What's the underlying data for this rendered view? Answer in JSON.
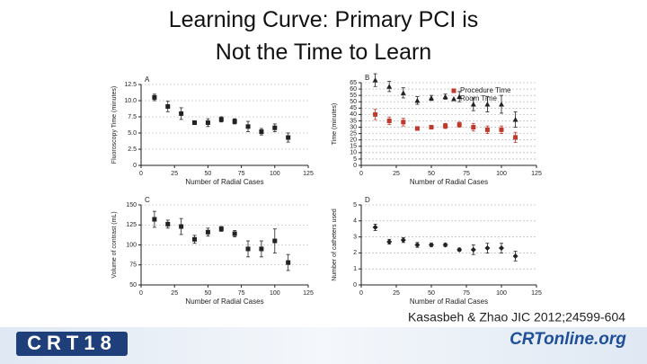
{
  "title": "Learning Curve: Primary PCI is Not the Time to Learn",
  "citation": "Kasasbeh & Zhao JIC 2012;24599-604",
  "logo_left": "CRT18",
  "logo_right": "CRTonline.org",
  "chart_data": [
    {
      "type": "scatter",
      "label": "A",
      "x_label": "Number of Radial Cases",
      "y_label": "Fluoroscopy Time (minutes)",
      "x": [
        10,
        20,
        30,
        40,
        50,
        60,
        70,
        80,
        90,
        100,
        110
      ],
      "values": [
        10.5,
        9.1,
        8.0,
        6.6,
        6.6,
        7.1,
        6.8,
        6.0,
        5.2,
        5.8,
        4.3
      ],
      "errors": [
        0.5,
        0.8,
        0.9,
        0.3,
        0.6,
        0.4,
        0.4,
        0.8,
        0.5,
        0.6,
        0.7
      ],
      "color": "#222222",
      "marker": "square",
      "xlim": [
        0,
        125
      ],
      "xticks": [
        0,
        25,
        50,
        75,
        100,
        125
      ],
      "ylim": [
        0,
        12.5
      ],
      "yticks": [
        0,
        2.5,
        {
          "value": 5,
          "label": "5.0"
        },
        7.5,
        {
          "value": 10,
          "label": "10.0"
        },
        12.5
      ],
      "grid": true
    },
    {
      "type": "scatter",
      "label": "B",
      "x_label": "Number of Radial Cases",
      "y_label": "Time (minutes)",
      "x": [
        10,
        20,
        30,
        40,
        50,
        60,
        70,
        80,
        90,
        100,
        110
      ],
      "series": [
        {
          "name": "Procedure Time",
          "color": "#c0392b",
          "marker": "square",
          "values": [
            40,
            35,
            34,
            29,
            30,
            31,
            32,
            30,
            28,
            28,
            22
          ],
          "errors": [
            4,
            3,
            3,
            1,
            1,
            2,
            2,
            3,
            3,
            3,
            4
          ]
        },
        {
          "name": "Room Time",
          "color": "#222222",
          "marker": "triangle",
          "values": [
            67,
            62,
            57,
            51,
            53,
            54,
            54,
            48,
            48,
            48,
            36
          ],
          "errors": [
            5,
            4,
            4,
            3,
            2,
            2,
            4,
            5,
            6,
            7,
            6
          ]
        }
      ],
      "xlim": [
        0,
        125
      ],
      "xticks": [
        0,
        25,
        50,
        75,
        100,
        125
      ],
      "ylim": [
        0,
        65
      ],
      "yticks": [
        0,
        5,
        10,
        15,
        20,
        25,
        30,
        35,
        40,
        45,
        50,
        55,
        60,
        65
      ],
      "grid": true,
      "legend": "top-right"
    },
    {
      "type": "scatter",
      "label": "C",
      "x_label": "Number of Radial Cases",
      "y_label": "Volume of contrast (mL)",
      "x": [
        10,
        20,
        30,
        40,
        50,
        60,
        70,
        80,
        90,
        100,
        110
      ],
      "values": [
        132,
        126,
        123,
        107,
        116,
        120,
        114,
        95,
        95,
        105,
        78
      ],
      "errors": [
        10,
        5,
        10,
        5,
        5,
        3,
        4,
        10,
        10,
        15,
        10
      ],
      "color": "#222222",
      "marker": "square",
      "xlim": [
        0,
        125
      ],
      "xticks": [
        0,
        25,
        50,
        75,
        100,
        125
      ],
      "ylim": [
        50,
        150
      ],
      "yticks": [
        50,
        75,
        100,
        125,
        150
      ],
      "grid": true
    },
    {
      "type": "scatter",
      "label": "D",
      "x_label": "Number of Radial Cases",
      "y_label": "Number of catheters used",
      "x": [
        10,
        20,
        30,
        40,
        50,
        60,
        70,
        80,
        90,
        100,
        110
      ],
      "values": [
        3.6,
        2.7,
        2.8,
        2.5,
        2.5,
        2.5,
        2.2,
        2.2,
        2.3,
        2.3,
        1.8
      ],
      "errors": [
        0.2,
        0.15,
        0.15,
        0.15,
        0.1,
        0.1,
        0.1,
        0.3,
        0.3,
        0.3,
        0.3
      ],
      "color": "#222222",
      "marker": "diamond",
      "xlim": [
        0,
        125
      ],
      "xticks": [
        0,
        25,
        50,
        75,
        100,
        125
      ],
      "ylim": [
        0,
        5
      ],
      "yticks": [
        0,
        1,
        2,
        3,
        4,
        5
      ],
      "grid": true
    }
  ]
}
